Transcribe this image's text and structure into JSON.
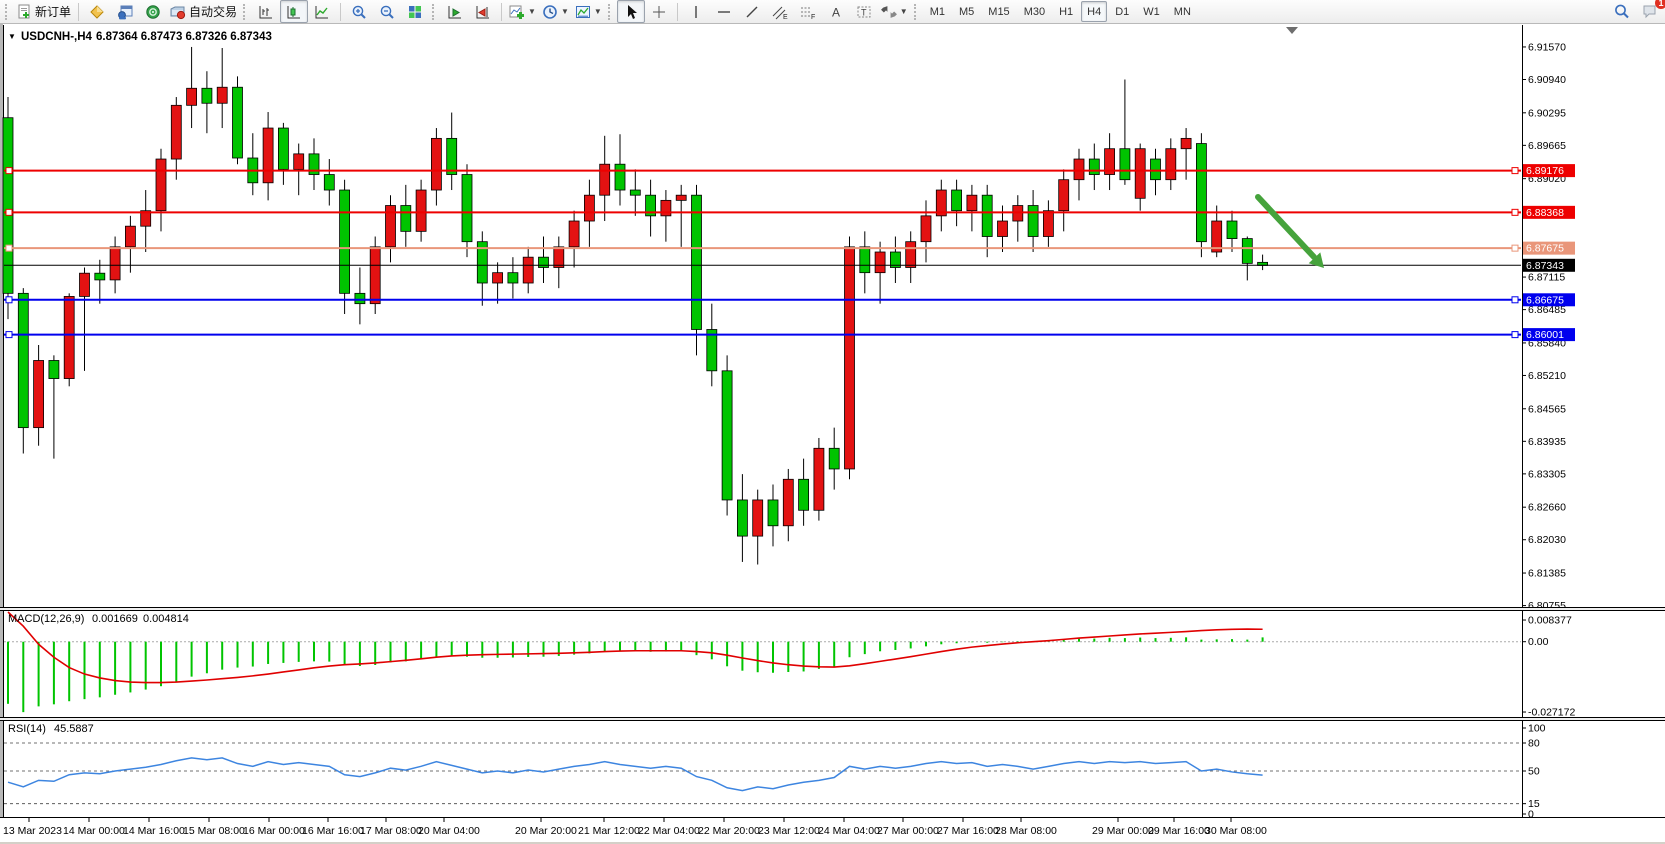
{
  "toolbar": {
    "new_order": "新订单",
    "auto_trading": "自动交易",
    "timeframes": [
      "M1",
      "M5",
      "M15",
      "M30",
      "H1",
      "H4",
      "D1",
      "W1",
      "MN"
    ],
    "active_timeframe": "H4",
    "icons": [
      "new-order-icon",
      "market-watch-icon",
      "data-window-icon",
      "navigator-icon",
      "auto-trading-icon",
      "bar-chart-icon",
      "candlestick-chart-icon",
      "line-chart-icon",
      "zoom-in-icon",
      "zoom-out-icon",
      "tile-windows-icon",
      "auto-scroll-icon",
      "chart-shift-icon",
      "indicators-icon",
      "periods-icon",
      "template-icon",
      "cursor-icon",
      "crosshair-icon",
      "vertical-line-icon",
      "horizontal-line-icon",
      "trendline-icon",
      "equidistant-channel-icon",
      "fibonacci-icon",
      "text-icon",
      "text-label-icon",
      "arrows-icon",
      "search-icon",
      "alerts-icon"
    ],
    "alert_count": "1"
  },
  "chart": {
    "title_symbol": "USDCNH-,H4",
    "title_quotes": "6.87364 6.87473 6.87326 6.87343",
    "dropdown_glyph": "▼"
  },
  "chart_data": {
    "type": "candlestick",
    "symbol": "USDCNH-",
    "timeframe": "H4",
    "quote": {
      "open": "6.87364",
      "high": "6.87473",
      "low": "6.87326",
      "close": "6.87343"
    },
    "colors": {
      "bull": "#e31212",
      "bear": "#00c400",
      "wick": "#000000",
      "level_red": "#ee0000",
      "level_salmon": "#e9967a",
      "level_blue": "#0000ee",
      "current": "#000000",
      "macd_hist": "#00c400",
      "macd_signal": "#e00000",
      "rsi_line": "#3d85e0",
      "arrow": "#46a33c"
    },
    "y_ticks": [
      "6.91570",
      "6.90940",
      "6.90295",
      "6.89665",
      "6.89020",
      "6.87115",
      "6.86485",
      "6.85840",
      "6.85210",
      "6.84565",
      "6.83935",
      "6.83305",
      "6.82660",
      "6.82030",
      "6.81385",
      "6.80755"
    ],
    "horizontal_levels": [
      {
        "price": 6.89176,
        "label": "6.89176",
        "color": "#ee0000",
        "width": 2
      },
      {
        "price": 6.88368,
        "label": "6.88368",
        "color": "#ee0000",
        "width": 2
      },
      {
        "price": 6.87675,
        "label": "6.87675",
        "color": "#e9967a",
        "width": 2
      },
      {
        "price": 6.86675,
        "label": "6.86675",
        "color": "#0000ee",
        "width": 2
      },
      {
        "price": 6.86001,
        "label": "6.86001",
        "color": "#0000ee",
        "width": 2
      }
    ],
    "current_price": {
      "value": 6.87343,
      "label": "6.87343",
      "color": "#000000"
    },
    "x_labels": [
      "13 Mar 2023",
      "14 Mar 00:00",
      "14 Mar 16:00",
      "15 Mar 08:00",
      "16 Mar 00:00",
      "16 Mar 16:00",
      "17 Mar 08:00",
      "20 Mar 04:00",
      "20 Mar 20:00",
      "21 Mar 12:00",
      "22 Mar 04:00",
      "22 Mar 20:00",
      "23 Mar 12:00",
      "24 Mar 04:00",
      "27 Mar 00:00",
      "27 Mar 16:00",
      "28 Mar 08:00",
      "29 Mar 00:00",
      "29 Mar 16:00",
      "30 Mar 08:00"
    ],
    "x_label_pos": [
      3,
      63,
      123,
      183,
      243,
      302,
      360,
      418,
      515,
      578,
      638,
      698,
      758,
      818,
      877,
      937,
      995,
      1092,
      1148,
      1205
    ],
    "candles": [
      [
        6.902,
        6.906,
        6.863,
        6.868
      ],
      [
        6.868,
        6.869,
        6.837,
        6.842
      ],
      [
        6.842,
        6.858,
        6.8385,
        6.855
      ],
      [
        6.855,
        6.856,
        6.836,
        6.8515
      ],
      [
        6.8515,
        6.868,
        6.85,
        6.8674
      ],
      [
        6.8674,
        6.873,
        6.853,
        6.8719
      ],
      [
        6.8719,
        6.8745,
        6.866,
        6.8706
      ],
      [
        6.8706,
        6.879,
        6.868,
        6.877
      ],
      [
        6.877,
        6.883,
        6.872,
        6.881
      ],
      [
        6.881,
        6.888,
        6.876,
        6.884
      ],
      [
        6.884,
        6.896,
        6.88,
        6.894
      ],
      [
        6.894,
        6.906,
        6.89,
        6.9044
      ],
      [
        6.9044,
        6.9157,
        6.9,
        6.9077
      ],
      [
        6.9077,
        6.911,
        6.899,
        6.9048
      ],
      [
        6.9048,
        6.9155,
        6.9,
        6.9079
      ],
      [
        6.9079,
        6.91,
        6.893,
        6.8942
      ],
      [
        6.8942,
        6.899,
        6.887,
        6.8894
      ],
      [
        6.8894,
        6.9031,
        6.886,
        6.9
      ],
      [
        6.9,
        6.901,
        6.889,
        6.892
      ],
      [
        6.892,
        6.897,
        6.887,
        6.895
      ],
      [
        6.895,
        6.898,
        6.888,
        6.891
      ],
      [
        6.891,
        6.894,
        6.885,
        6.888
      ],
      [
        6.888,
        6.89,
        6.864,
        6.868
      ],
      [
        6.868,
        6.873,
        6.862,
        6.866
      ],
      [
        6.866,
        6.879,
        6.864,
        6.877
      ],
      [
        6.877,
        6.887,
        6.874,
        6.885
      ],
      [
        6.885,
        6.889,
        6.877,
        6.88
      ],
      [
        6.88,
        6.89,
        6.878,
        6.888
      ],
      [
        6.888,
        6.9,
        6.885,
        6.898
      ],
      [
        6.898,
        6.903,
        6.888,
        6.891
      ],
      [
        6.891,
        6.893,
        6.875,
        6.878
      ],
      [
        6.878,
        6.88,
        6.8656,
        6.87
      ],
      [
        6.87,
        6.874,
        6.866,
        6.872
      ],
      [
        6.872,
        6.875,
        6.867,
        6.87
      ],
      [
        6.87,
        6.877,
        6.868,
        6.875
      ],
      [
        6.875,
        6.879,
        6.87,
        6.873
      ],
      [
        6.873,
        6.879,
        6.869,
        6.877
      ],
      [
        6.877,
        6.884,
        6.873,
        6.882
      ],
      [
        6.882,
        6.89,
        6.877,
        6.887
      ],
      [
        6.887,
        6.8985,
        6.882,
        6.893
      ],
      [
        6.893,
        6.8988,
        6.885,
        6.888
      ],
      [
        6.888,
        6.892,
        6.883,
        6.887
      ],
      [
        6.887,
        6.89,
        6.879,
        6.883
      ],
      [
        6.883,
        6.888,
        6.878,
        6.886
      ],
      [
        6.886,
        6.889,
        6.877,
        6.887
      ],
      [
        6.887,
        6.889,
        6.856,
        6.861
      ],
      [
        6.861,
        6.866,
        6.85,
        6.853
      ],
      [
        6.853,
        6.856,
        6.825,
        6.828
      ],
      [
        6.828,
        6.833,
        6.816,
        6.821
      ],
      [
        6.821,
        6.83,
        6.8155,
        6.828
      ],
      [
        6.828,
        6.831,
        6.819,
        6.823
      ],
      [
        6.823,
        6.834,
        6.82,
        6.832
      ],
      [
        6.832,
        6.836,
        6.823,
        6.826
      ],
      [
        6.826,
        6.84,
        6.824,
        6.838
      ],
      [
        6.838,
        6.842,
        6.83,
        6.834
      ],
      [
        6.834,
        6.879,
        6.832,
        6.877
      ],
      [
        6.877,
        6.88,
        6.868,
        6.872
      ],
      [
        6.872,
        6.878,
        6.866,
        6.876
      ],
      [
        6.876,
        6.879,
        6.87,
        6.873
      ],
      [
        6.873,
        6.88,
        6.87,
        6.878
      ],
      [
        6.878,
        6.886,
        6.874,
        6.883
      ],
      [
        6.883,
        6.89,
        6.88,
        6.888
      ],
      [
        6.888,
        6.89,
        6.881,
        6.884
      ],
      [
        6.884,
        6.889,
        6.88,
        6.887
      ],
      [
        6.887,
        6.889,
        6.875,
        6.879
      ],
      [
        6.879,
        6.885,
        6.876,
        6.882
      ],
      [
        6.882,
        6.887,
        6.878,
        6.885
      ],
      [
        6.885,
        6.888,
        6.876,
        6.879
      ],
      [
        6.879,
        6.886,
        6.877,
        6.884
      ],
      [
        6.884,
        6.892,
        6.88,
        6.89
      ],
      [
        6.89,
        6.896,
        6.886,
        6.894
      ],
      [
        6.894,
        6.897,
        6.888,
        6.891
      ],
      [
        6.891,
        6.899,
        6.888,
        6.896
      ],
      [
        6.896,
        6.9094,
        6.889,
        6.89
      ],
      [
        6.8864,
        6.897,
        6.884,
        6.896
      ],
      [
        6.894,
        6.896,
        6.887,
        6.89
      ],
      [
        6.89,
        6.898,
        6.888,
        6.896
      ],
      [
        6.896,
        6.9,
        6.89,
        6.898
      ],
      [
        6.897,
        6.899,
        6.875,
        6.878
      ],
      [
        6.876,
        6.885,
        6.875,
        6.882
      ],
      [
        6.882,
        6.884,
        6.876,
        6.8786
      ],
      [
        6.8786,
        6.879,
        6.8705,
        6.8738
      ],
      [
        6.874,
        6.8755,
        6.8725,
        6.8734
      ]
    ],
    "annotation_arrow": {
      "from": [
        1258,
        197
      ],
      "to": [
        1314,
        257
      ],
      "color": "#46a33c"
    },
    "indicators": {
      "macd": {
        "label": "MACD(12,26,9)",
        "main_value": "0.001669",
        "signal_value": "0.004814",
        "axis": [
          "0.008377",
          "0.00",
          "-0.027172"
        ],
        "axis_values": [
          0.008377,
          0,
          -0.027172
        ],
        "histogram": [
          -0.024,
          -0.0272,
          -0.025,
          -0.0242,
          -0.023,
          -0.0222,
          -0.0215,
          -0.0205,
          -0.0196,
          -0.0185,
          -0.0172,
          -0.0155,
          -0.0135,
          -0.0122,
          -0.0108,
          -0.01,
          -0.0096,
          -0.0086,
          -0.0082,
          -0.0078,
          -0.0076,
          -0.0077,
          -0.0088,
          -0.0094,
          -0.009,
          -0.008,
          -0.0076,
          -0.0068,
          -0.0058,
          -0.0056,
          -0.0058,
          -0.0062,
          -0.0062,
          -0.0061,
          -0.0059,
          -0.0058,
          -0.0055,
          -0.005,
          -0.0045,
          -0.0038,
          -0.0035,
          -0.0036,
          -0.0039,
          -0.0038,
          -0.0036,
          -0.0052,
          -0.0068,
          -0.0095,
          -0.0112,
          -0.0118,
          -0.012,
          -0.0117,
          -0.0115,
          -0.0105,
          -0.0098,
          -0.006,
          -0.0048,
          -0.0037,
          -0.0032,
          -0.0026,
          -0.0018,
          -0.001,
          -0.0006,
          -0.0002,
          -0.0004,
          -0.0002,
          0.0002,
          0.0,
          0.0003,
          0.0008,
          0.0012,
          0.0012,
          0.0015,
          0.0014,
          0.0016,
          0.0014,
          0.0015,
          0.0017,
          0.0008,
          0.0009,
          0.001,
          0.0008,
          0.001669
        ],
        "signal": [
          0.0123,
          0.006,
          -0.001,
          -0.006,
          -0.01,
          -0.0125,
          -0.014,
          -0.015,
          -0.0156,
          -0.0158,
          -0.0158,
          -0.0156,
          -0.0152,
          -0.0148,
          -0.0143,
          -0.0138,
          -0.0132,
          -0.0125,
          -0.0117,
          -0.0109,
          -0.0101,
          -0.0094,
          -0.0089,
          -0.0086,
          -0.0082,
          -0.0077,
          -0.0072,
          -0.0066,
          -0.006,
          -0.0055,
          -0.0052,
          -0.005,
          -0.0049,
          -0.0048,
          -0.0047,
          -0.0046,
          -0.0045,
          -0.0043,
          -0.0041,
          -0.0038,
          -0.0036,
          -0.0035,
          -0.0035,
          -0.0035,
          -0.0035,
          -0.0038,
          -0.0043,
          -0.0052,
          -0.0063,
          -0.0073,
          -0.0082,
          -0.0089,
          -0.0094,
          -0.0097,
          -0.0098,
          -0.0093,
          -0.0085,
          -0.0076,
          -0.0067,
          -0.0058,
          -0.0048,
          -0.0038,
          -0.0029,
          -0.0021,
          -0.0015,
          -0.0009,
          -0.0004,
          0.0,
          0.0004,
          0.0009,
          0.0014,
          0.0018,
          0.0022,
          0.0026,
          0.003,
          0.0033,
          0.0036,
          0.0039,
          0.0043,
          0.0046,
          0.0048,
          0.0049,
          0.004814
        ]
      },
      "rsi": {
        "label": "RSI(14)",
        "value": "45.5887",
        "levels": [
          80,
          50,
          15
        ],
        "axis": [
          "100",
          "80",
          "50",
          "15",
          "0"
        ],
        "axis_values": [
          100,
          80,
          50,
          15,
          0
        ],
        "series": [
          38,
          33,
          40,
          39,
          46,
          48,
          47,
          50,
          52,
          54,
          57,
          61,
          64,
          62,
          64,
          58,
          55,
          60,
          57,
          59,
          57,
          55,
          46,
          44,
          48,
          53,
          51,
          55,
          60,
          56,
          52,
          48,
          50,
          48,
          51,
          49,
          52,
          55,
          57,
          60,
          57,
          55,
          53,
          55,
          53,
          44,
          40,
          32,
          29,
          33,
          31,
          35,
          38,
          40,
          43,
          55,
          52,
          55,
          53,
          55,
          58,
          60,
          58,
          59,
          55,
          57,
          55,
          52,
          55,
          58,
          60,
          58,
          60,
          59,
          60,
          58,
          59,
          60,
          50,
          52,
          49,
          47,
          45.59
        ]
      }
    }
  }
}
